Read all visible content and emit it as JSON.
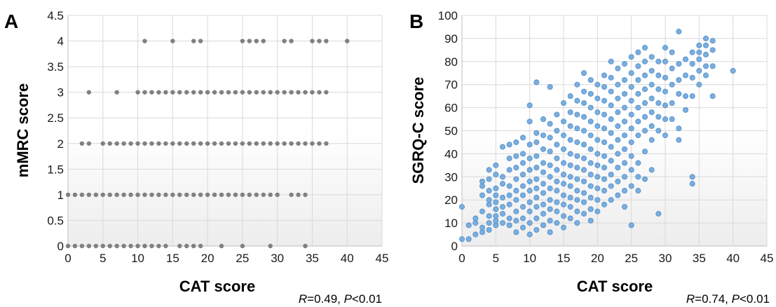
{
  "chart_data": [
    {
      "panel": "A",
      "type": "scatter",
      "xlabel": "CAT score",
      "ylabel": "mMRC score",
      "xlim": [
        0,
        45
      ],
      "ylim": [
        0,
        4.5
      ],
      "x_ticks": [
        "0",
        "5",
        "10",
        "15",
        "20",
        "25",
        "30",
        "35",
        "40",
        "45"
      ],
      "y_ticks": [
        "0",
        "0.5",
        "1",
        "1.5",
        "2",
        "2.5",
        "3",
        "3.5",
        "4",
        "4.5"
      ],
      "grid": true,
      "marker_color": "#808080",
      "stat": {
        "r_label": "R",
        "r_value": "=0.49, ",
        "p_label": "P",
        "p_value": "<0.01"
      },
      "points": [
        {
          "y": 0,
          "x": [
            0,
            1,
            2,
            3,
            4,
            5,
            6,
            7,
            8,
            9,
            10,
            11,
            12,
            13,
            14,
            16,
            17,
            18,
            19,
            22,
            25,
            29,
            34
          ]
        },
        {
          "y": 1,
          "x": [
            0,
            1,
            2,
            3,
            4,
            5,
            6,
            7,
            8,
            9,
            10,
            11,
            12,
            13,
            14,
            15,
            16,
            17,
            18,
            19,
            20,
            21,
            22,
            23,
            24,
            25,
            26,
            27,
            28,
            29,
            30,
            32,
            33,
            34
          ]
        },
        {
          "y": 2,
          "x": [
            2,
            3,
            5,
            6,
            7,
            8,
            9,
            10,
            11,
            12,
            13,
            14,
            15,
            16,
            17,
            18,
            19,
            20,
            21,
            22,
            23,
            24,
            25,
            26,
            27,
            28,
            29,
            30,
            31,
            32,
            33,
            34,
            35,
            36,
            37
          ]
        },
        {
          "y": 3,
          "x": [
            3,
            7,
            10,
            11,
            12,
            13,
            14,
            15,
            16,
            17,
            18,
            19,
            20,
            21,
            22,
            23,
            24,
            25,
            26,
            27,
            28,
            29,
            30,
            31,
            32,
            33,
            34,
            35,
            36,
            37
          ]
        },
        {
          "y": 4,
          "x": [
            11,
            15,
            18,
            19,
            25,
            26,
            27,
            28,
            31,
            32,
            35,
            36,
            37,
            40
          ]
        }
      ]
    },
    {
      "panel": "B",
      "type": "scatter",
      "xlabel": "CAT score",
      "ylabel": "SGRQ-C score",
      "xlim": [
        0,
        45
      ],
      "ylim": [
        0,
        100
      ],
      "x_ticks": [
        "0",
        "5",
        "10",
        "15",
        "20",
        "25",
        "30",
        "35",
        "40",
        "45"
      ],
      "y_ticks": [
        "0",
        "10",
        "20",
        "30",
        "40",
        "50",
        "60",
        "70",
        "80",
        "90",
        "100"
      ],
      "grid": true,
      "marker_color": "#7aaede",
      "stat": {
        "r_label": "R",
        "r_value": "=0.74, ",
        "p_label": "P",
        "p_value": "<0.01"
      },
      "points": [
        [
          0,
          3
        ],
        [
          0,
          17
        ],
        [
          1,
          3
        ],
        [
          1,
          9
        ],
        [
          2,
          5
        ],
        [
          2,
          10
        ],
        [
          2,
          12
        ],
        [
          3,
          6
        ],
        [
          3,
          8
        ],
        [
          3,
          15
        ],
        [
          3,
          22
        ],
        [
          3,
          26
        ],
        [
          3,
          28
        ],
        [
          4,
          7
        ],
        [
          4,
          10
        ],
        [
          4,
          13
        ],
        [
          4,
          18
        ],
        [
          4,
          20
        ],
        [
          4,
          24
        ],
        [
          4,
          29
        ],
        [
          4,
          33
        ],
        [
          5,
          9
        ],
        [
          5,
          11
        ],
        [
          5,
          13
        ],
        [
          5,
          16
        ],
        [
          5,
          19
        ],
        [
          5,
          22
        ],
        [
          5,
          25
        ],
        [
          5,
          31
        ],
        [
          5,
          35
        ],
        [
          6,
          10
        ],
        [
          6,
          14
        ],
        [
          6,
          17
        ],
        [
          6,
          21
        ],
        [
          6,
          27
        ],
        [
          6,
          30
        ],
        [
          6,
          43
        ],
        [
          7,
          9
        ],
        [
          7,
          12
        ],
        [
          7,
          18
        ],
        [
          7,
          22
        ],
        [
          7,
          26
        ],
        [
          7,
          33
        ],
        [
          7,
          38
        ],
        [
          7,
          44
        ],
        [
          8,
          6
        ],
        [
          8,
          11
        ],
        [
          8,
          15
        ],
        [
          8,
          20
        ],
        [
          8,
          24
        ],
        [
          8,
          29
        ],
        [
          8,
          34
        ],
        [
          8,
          39
        ],
        [
          8,
          45
        ],
        [
          9,
          8
        ],
        [
          9,
          12
        ],
        [
          9,
          17
        ],
        [
          9,
          22
        ],
        [
          9,
          26
        ],
        [
          9,
          31
        ],
        [
          9,
          36
        ],
        [
          9,
          40
        ],
        [
          9,
          47
        ],
        [
          10,
          5
        ],
        [
          10,
          10
        ],
        [
          10,
          15
        ],
        [
          10,
          19
        ],
        [
          10,
          24
        ],
        [
          10,
          28
        ],
        [
          10,
          33
        ],
        [
          10,
          38
        ],
        [
          10,
          44
        ],
        [
          10,
          54
        ],
        [
          10,
          61
        ],
        [
          11,
          7
        ],
        [
          11,
          12
        ],
        [
          11,
          17
        ],
        [
          11,
          21
        ],
        [
          11,
          25
        ],
        [
          11,
          29
        ],
        [
          11,
          34
        ],
        [
          11,
          39
        ],
        [
          11,
          45
        ],
        [
          11,
          49
        ],
        [
          11,
          71
        ],
        [
          12,
          9
        ],
        [
          12,
          14
        ],
        [
          12,
          18
        ],
        [
          12,
          23
        ],
        [
          12,
          27
        ],
        [
          12,
          32
        ],
        [
          12,
          36
        ],
        [
          12,
          42
        ],
        [
          12,
          48
        ],
        [
          12,
          55
        ],
        [
          13,
          6
        ],
        [
          13,
          11
        ],
        [
          13,
          16
        ],
        [
          13,
          20
        ],
        [
          13,
          25
        ],
        [
          13,
          30
        ],
        [
          13,
          35
        ],
        [
          13,
          41
        ],
        [
          13,
          47
        ],
        [
          13,
          53
        ],
        [
          13,
          69
        ],
        [
          14,
          10
        ],
        [
          14,
          15
        ],
        [
          14,
          19
        ],
        [
          14,
          24
        ],
        [
          14,
          28
        ],
        [
          14,
          33
        ],
        [
          14,
          38
        ],
        [
          14,
          44
        ],
        [
          14,
          50
        ],
        [
          14,
          57
        ],
        [
          15,
          8
        ],
        [
          15,
          13
        ],
        [
          15,
          18
        ],
        [
          15,
          22
        ],
        [
          15,
          27
        ],
        [
          15,
          31
        ],
        [
          15,
          36
        ],
        [
          15,
          42
        ],
        [
          15,
          48
        ],
        [
          15,
          54
        ],
        [
          15,
          62
        ],
        [
          16,
          12
        ],
        [
          16,
          17
        ],
        [
          16,
          21
        ],
        [
          16,
          26
        ],
        [
          16,
          30
        ],
        [
          16,
          35
        ],
        [
          16,
          40
        ],
        [
          16,
          46
        ],
        [
          16,
          52
        ],
        [
          16,
          58
        ],
        [
          16,
          65
        ],
        [
          17,
          10
        ],
        [
          17,
          15
        ],
        [
          17,
          20
        ],
        [
          17,
          24
        ],
        [
          17,
          29
        ],
        [
          17,
          34
        ],
        [
          17,
          39
        ],
        [
          17,
          45
        ],
        [
          17,
          51
        ],
        [
          17,
          57
        ],
        [
          17,
          63
        ],
        [
          17,
          70
        ],
        [
          18,
          14
        ],
        [
          18,
          19
        ],
        [
          18,
          23
        ],
        [
          18,
          28
        ],
        [
          18,
          33
        ],
        [
          18,
          38
        ],
        [
          18,
          44
        ],
        [
          18,
          50
        ],
        [
          18,
          56
        ],
        [
          18,
          62
        ],
        [
          18,
          67
        ],
        [
          18,
          75
        ],
        [
          19,
          11
        ],
        [
          19,
          16
        ],
        [
          19,
          21
        ],
        [
          19,
          26
        ],
        [
          19,
          31
        ],
        [
          19,
          36
        ],
        [
          19,
          42
        ],
        [
          19,
          48
        ],
        [
          19,
          54
        ],
        [
          19,
          60
        ],
        [
          19,
          66
        ],
        [
          19,
          72
        ],
        [
          20,
          15
        ],
        [
          20,
          20
        ],
        [
          20,
          25
        ],
        [
          20,
          30
        ],
        [
          20,
          35
        ],
        [
          20,
          40
        ],
        [
          20,
          46
        ],
        [
          20,
          52
        ],
        [
          20,
          58
        ],
        [
          20,
          64
        ],
        [
          20,
          70
        ],
        [
          21,
          18
        ],
        [
          21,
          24
        ],
        [
          21,
          29
        ],
        [
          21,
          34
        ],
        [
          21,
          39
        ],
        [
          21,
          45
        ],
        [
          21,
          51
        ],
        [
          21,
          57
        ],
        [
          21,
          63
        ],
        [
          21,
          69
        ],
        [
          21,
          74
        ],
        [
          22,
          20
        ],
        [
          22,
          26
        ],
        [
          22,
          31
        ],
        [
          22,
          37
        ],
        [
          22,
          43
        ],
        [
          22,
          49
        ],
        [
          22,
          55
        ],
        [
          22,
          61
        ],
        [
          22,
          67
        ],
        [
          22,
          73
        ],
        [
          22,
          80
        ],
        [
          23,
          22
        ],
        [
          23,
          28
        ],
        [
          23,
          34
        ],
        [
          23,
          40
        ],
        [
          23,
          46
        ],
        [
          23,
          52
        ],
        [
          23,
          58
        ],
        [
          23,
          64
        ],
        [
          23,
          70
        ],
        [
          23,
          77
        ],
        [
          24,
          17
        ],
        [
          24,
          24
        ],
        [
          24,
          30
        ],
        [
          24,
          36
        ],
        [
          24,
          42
        ],
        [
          24,
          48
        ],
        [
          24,
          54
        ],
        [
          24,
          60
        ],
        [
          24,
          66
        ],
        [
          24,
          72
        ],
        [
          24,
          79
        ],
        [
          25,
          9
        ],
        [
          25,
          26
        ],
        [
          25,
          33
        ],
        [
          25,
          39
        ],
        [
          25,
          45
        ],
        [
          25,
          51
        ],
        [
          25,
          57
        ],
        [
          25,
          63
        ],
        [
          25,
          69
        ],
        [
          25,
          75
        ],
        [
          25,
          82
        ],
        [
          26,
          24
        ],
        [
          26,
          30
        ],
        [
          26,
          36
        ],
        [
          26,
          48
        ],
        [
          26,
          54
        ],
        [
          26,
          60
        ],
        [
          26,
          66
        ],
        [
          26,
          72
        ],
        [
          26,
          78
        ],
        [
          26,
          84
        ],
        [
          27,
          29
        ],
        [
          27,
          41
        ],
        [
          27,
          50
        ],
        [
          27,
          56
        ],
        [
          27,
          62
        ],
        [
          27,
          68
        ],
        [
          27,
          74
        ],
        [
          27,
          80
        ],
        [
          27,
          86
        ],
        [
          28,
          33
        ],
        [
          28,
          46
        ],
        [
          28,
          52
        ],
        [
          28,
          58
        ],
        [
          28,
          64
        ],
        [
          28,
          70
        ],
        [
          28,
          76
        ],
        [
          28,
          82
        ],
        [
          29,
          14
        ],
        [
          29,
          50
        ],
        [
          29,
          56
        ],
        [
          29,
          62
        ],
        [
          29,
          68
        ],
        [
          29,
          74
        ],
        [
          29,
          80
        ],
        [
          30,
          48
        ],
        [
          30,
          55
        ],
        [
          30,
          61
        ],
        [
          30,
          67
        ],
        [
          30,
          73
        ],
        [
          30,
          80
        ],
        [
          30,
          86
        ],
        [
          31,
          55
        ],
        [
          31,
          62
        ],
        [
          31,
          70
        ],
        [
          31,
          77
        ],
        [
          31,
          84
        ],
        [
          32,
          46
        ],
        [
          32,
          51
        ],
        [
          32,
          66
        ],
        [
          32,
          72
        ],
        [
          32,
          79
        ],
        [
          32,
          93
        ],
        [
          33,
          59
        ],
        [
          33,
          65
        ],
        [
          33,
          74
        ],
        [
          33,
          81
        ],
        [
          34,
          27
        ],
        [
          34,
          30
        ],
        [
          34,
          65
        ],
        [
          34,
          73
        ],
        [
          34,
          79
        ],
        [
          34,
          84
        ],
        [
          35,
          70
        ],
        [
          35,
          76
        ],
        [
          35,
          81
        ],
        [
          35,
          84
        ],
        [
          35,
          87
        ],
        [
          36,
          74
        ],
        [
          36,
          78
        ],
        [
          36,
          83
        ],
        [
          36,
          87
        ],
        [
          36,
          90
        ],
        [
          37,
          65
        ],
        [
          37,
          78
        ],
        [
          37,
          85
        ],
        [
          37,
          89
        ],
        [
          40,
          76
        ]
      ]
    }
  ]
}
